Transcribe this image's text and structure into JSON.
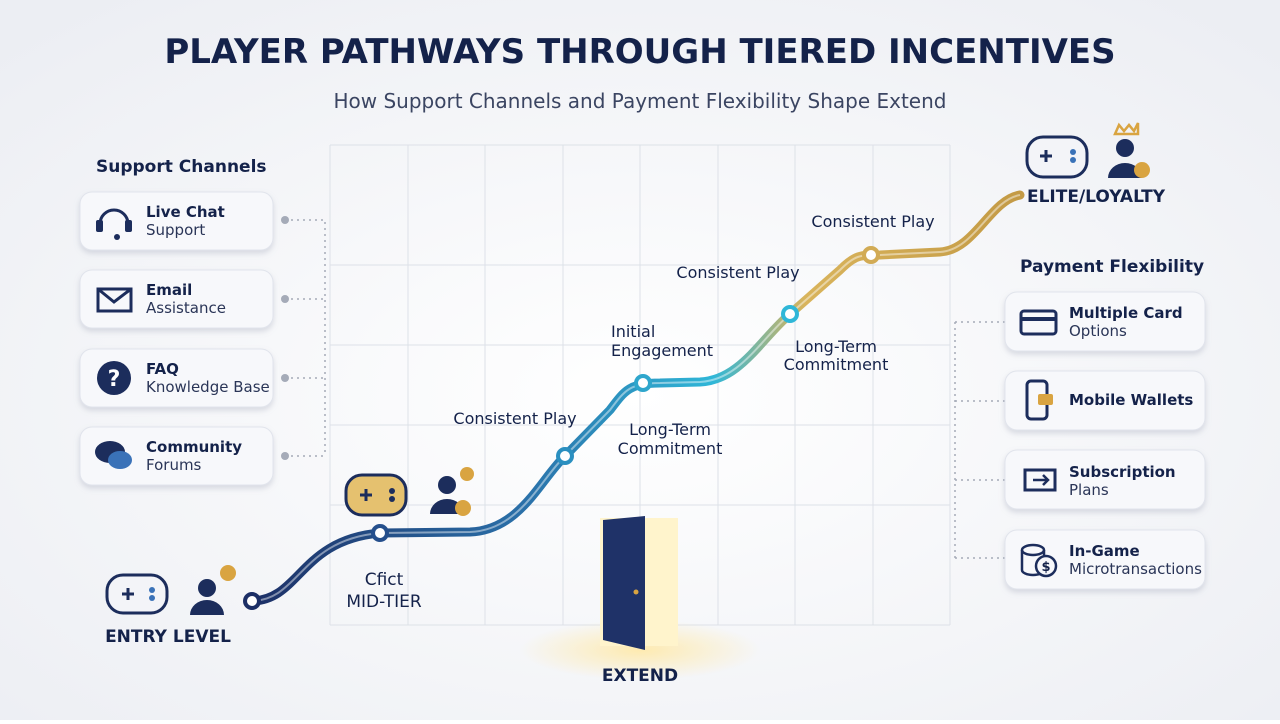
{
  "title": "PLAYER PATHWAYS THROUGH TIERED INCENTIVES",
  "subtitle": "How Support Channels and Payment Flexibility Shape Extend",
  "support": {
    "heading": "Support Channels",
    "items": [
      {
        "line1": "Live Chat",
        "line2": "Support"
      },
      {
        "line1": "Email",
        "line2": "Assistance"
      },
      {
        "line1": "FAQ",
        "line2": "Knowledge Base"
      },
      {
        "line1": "Community",
        "line2": "Forums"
      }
    ]
  },
  "payment": {
    "heading": "Payment Flexibility",
    "items": [
      {
        "line1": "Multiple Card",
        "line2": "Options"
      },
      {
        "line1": "Mobile Wallets"
      },
      {
        "line1": "Subscription",
        "line2": "Plans"
      },
      {
        "line1": "In-Game",
        "line2": "Microtransactions"
      }
    ]
  },
  "tiers": {
    "entry": "ENTRY LEVEL",
    "mid_line1": "Cfict",
    "mid_line2": "MID-TIER",
    "elite": "ELITE/LOYALTY",
    "extend": "EXTEND"
  },
  "path_labels": [
    {
      "line1": "Consistent Play"
    },
    {
      "line1": "Long-Term",
      "line2": "Commitment"
    },
    {
      "line1": "Initial",
      "line2": "Engagement"
    },
    {
      "line1": "Consistent Play"
    },
    {
      "line1": "Long-Term",
      "line2": "Commitment"
    },
    {
      "line1": "Consistent Play"
    }
  ]
}
